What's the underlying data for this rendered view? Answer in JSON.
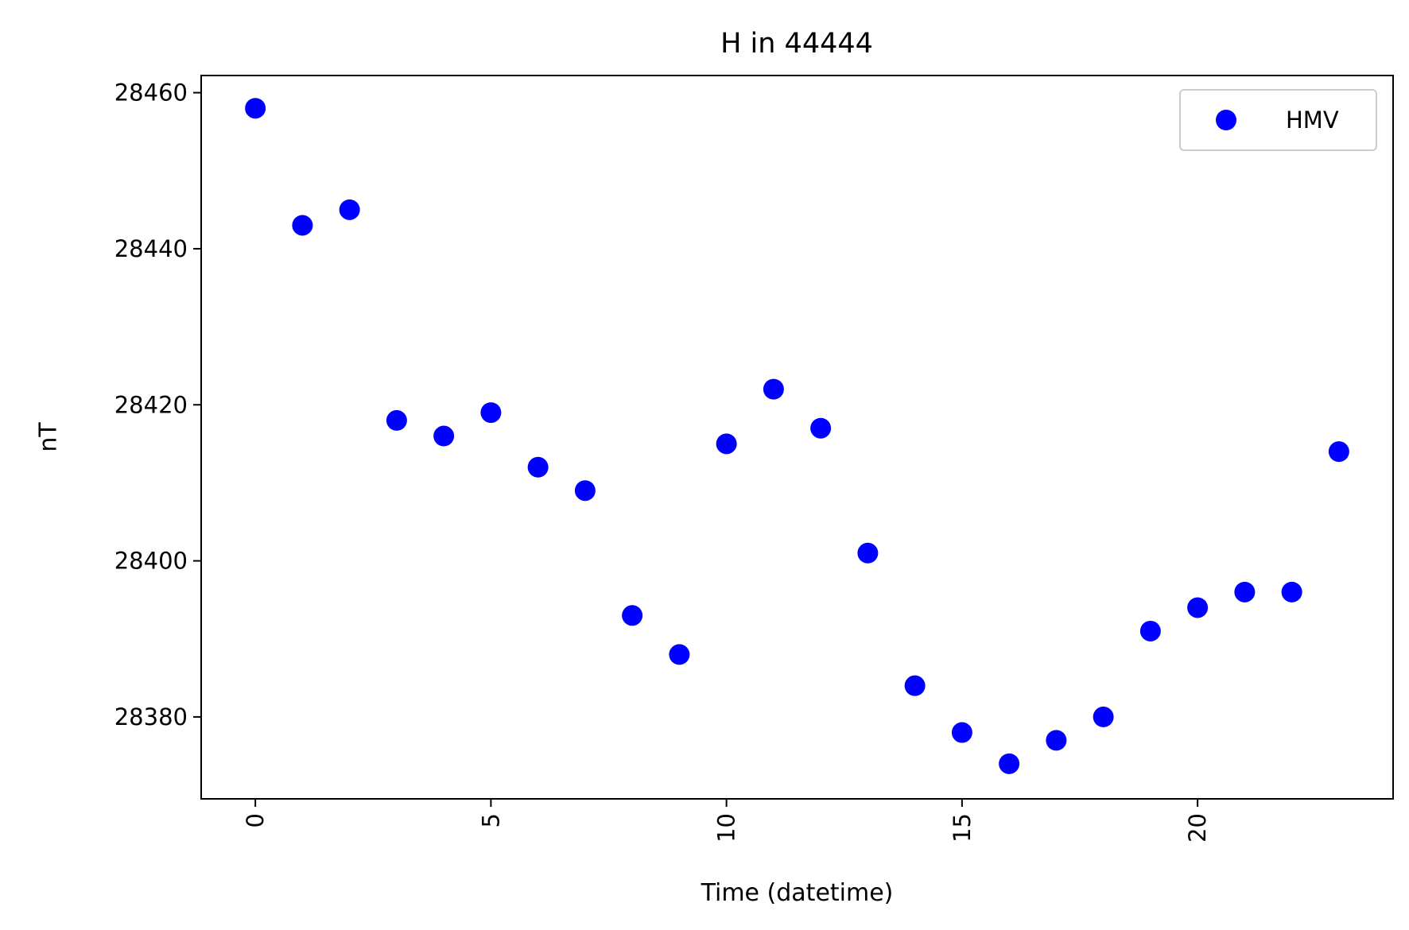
{
  "chart_data": {
    "type": "scatter",
    "title": "H in 44444",
    "xlabel": "Time (datetime)",
    "ylabel": "nT",
    "xlim": [
      -1.15,
      24.15
    ],
    "ylim": [
      28369.5,
      28462.2
    ],
    "x_ticks": [
      0,
      5,
      10,
      15,
      20
    ],
    "y_ticks": [
      28380,
      28400,
      28420,
      28440,
      28460
    ],
    "x_tick_rotation": -90,
    "grid": false,
    "legend": "top-right",
    "series": [
      {
        "name": "HMV",
        "color": "#0000ff",
        "marker": "circle",
        "x": [
          0,
          1,
          2,
          3,
          4,
          5,
          6,
          7,
          8,
          9,
          10,
          11,
          12,
          13,
          14,
          15,
          16,
          17,
          18,
          19,
          20,
          21,
          22,
          23
        ],
        "y": [
          28458,
          28443,
          28445,
          28418,
          28416,
          28419,
          28412,
          28409,
          28393,
          28388,
          28415,
          28422,
          28417,
          28401,
          28384,
          28378,
          28374,
          28377,
          28380,
          28391,
          28394,
          28396,
          28396,
          28414
        ]
      }
    ]
  }
}
